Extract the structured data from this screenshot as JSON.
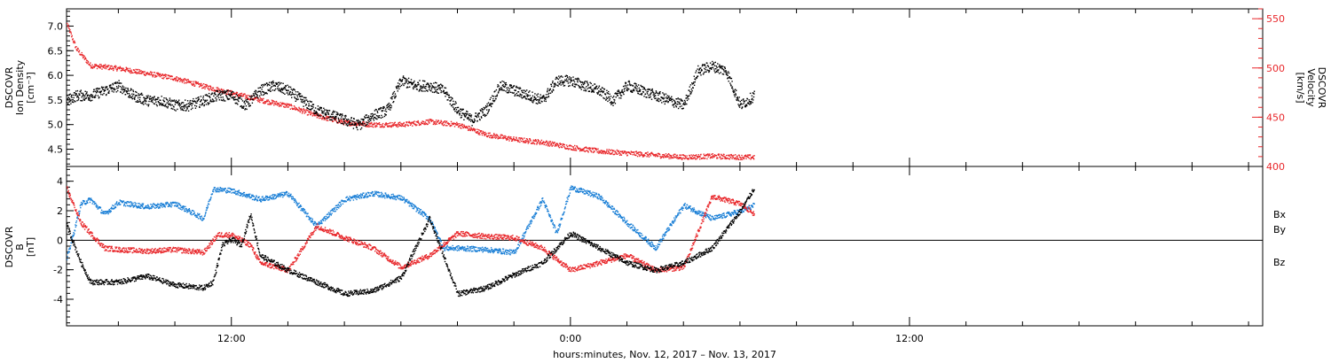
{
  "caption": "hours:minutes, Nov. 12, 2017 – Nov. 13, 2017",
  "time_axis": {
    "start": "2017-11-12 06:10",
    "end": "2017-11-14 00:30",
    "tick_labels": [
      {
        "time": "2017-11-12 12:00",
        "label": "12:00"
      },
      {
        "time": "2017-11-13 00:00",
        "label": "0:00"
      },
      {
        "time": "2017-11-13 12:00",
        "label": "12:00"
      }
    ],
    "minor_tick_hours": 2
  },
  "colors": {
    "density": "#000000",
    "velocity": "#e8262a",
    "bx": "#000000",
    "by": "#1a7fd6",
    "bz": "#e8262a"
  },
  "chart_data": [
    {
      "type": "scatter",
      "ylabel_lines": [
        "DSCOVR",
        "Ion Density",
        "[cm⁻³]"
      ],
      "ylabel_right_lines": [
        "DSCOVR",
        "Velocity",
        "[km/s]"
      ],
      "ylim": [
        4.15,
        7.35
      ],
      "ylim_right": [
        400,
        560
      ],
      "yticks": [
        "7.0",
        "6.5",
        "6.0",
        "5.5",
        "5.0",
        "4.5"
      ],
      "yticks_right": [
        "550",
        "500",
        "450",
        "400"
      ],
      "series": [
        {
          "key": "density",
          "axis": "left",
          "x": [
            "11-12 06:10",
            "11-12 06:30",
            "11-12 07:00",
            "11-12 07:30",
            "11-12 08:00",
            "11-12 08:30",
            "11-12 09:00",
            "11-12 09:30",
            "11-12 10:00",
            "11-12 10:30",
            "11-12 11:00",
            "11-12 11:30",
            "11-12 12:00",
            "11-12 12:30",
            "11-12 13:00",
            "11-12 13:30",
            "11-12 14:00",
            "11-12 14:30",
            "11-12 15:00",
            "11-12 15:30",
            "11-12 16:00",
            "11-12 16:30",
            "11-12 17:00",
            "11-12 17:30",
            "11-12 18:00",
            "11-12 18:30",
            "11-12 19:00",
            "11-12 19:30",
            "11-12 20:00",
            "11-12 20:30",
            "11-12 21:00",
            "11-12 21:30",
            "11-12 22:00",
            "11-12 22:30",
            "11-12 23:00",
            "11-12 23:30",
            "11-13 00:00",
            "11-13 00:30",
            "11-13 01:00",
            "11-13 01:30",
            "11-13 02:00",
            "11-13 02:30",
            "11-13 03:00",
            "11-13 03:30",
            "11-13 04:00",
            "11-13 04:30",
            "11-13 05:00",
            "11-13 05:30",
            "11-13 06:00",
            "11-13 06:30"
          ],
          "values": [
            5.5,
            5.6,
            5.6,
            5.7,
            5.8,
            5.6,
            5.5,
            5.5,
            5.4,
            5.4,
            5.5,
            5.6,
            5.6,
            5.4,
            5.7,
            5.8,
            5.7,
            5.5,
            5.3,
            5.2,
            5.1,
            5.0,
            5.2,
            5.3,
            5.9,
            5.8,
            5.8,
            5.7,
            5.3,
            5.1,
            5.3,
            5.8,
            5.7,
            5.6,
            5.5,
            5.9,
            5.9,
            5.8,
            5.7,
            5.5,
            5.8,
            5.7,
            5.6,
            5.5,
            5.4,
            6.1,
            6.2,
            6.1,
            5.4,
            5.6
          ]
        },
        {
          "key": "velocity",
          "axis": "right",
          "x": [
            "11-12 06:10",
            "11-12 06:30",
            "11-12 07:00",
            "11-12 08:00",
            "11-12 09:00",
            "11-12 10:00",
            "11-12 11:00",
            "11-12 12:00",
            "11-12 13:00",
            "11-12 14:00",
            "11-12 15:00",
            "11-12 16:00",
            "11-12 17:00",
            "11-12 18:00",
            "11-12 19:00",
            "11-12 20:00",
            "11-12 21:00",
            "11-12 22:00",
            "11-12 23:00",
            "11-13 00:00",
            "11-13 01:00",
            "11-13 02:00",
            "11-13 03:00",
            "11-13 04:00",
            "11-13 05:00",
            "11-13 06:00",
            "11-13 06:30"
          ],
          "values": [
            545,
            520,
            503,
            500,
            495,
            490,
            482,
            475,
            468,
            462,
            452,
            445,
            443,
            443,
            446,
            443,
            433,
            428,
            425,
            420,
            416,
            414,
            412,
            410,
            411,
            410,
            410
          ]
        }
      ]
    },
    {
      "type": "scatter",
      "ylabel_lines": [
        "DSCOVR",
        "B",
        "[nT]"
      ],
      "ylim": [
        -5.8,
        5.0
      ],
      "yticks": [
        "4",
        "2",
        "0",
        "-2",
        "-4"
      ],
      "zero_line": true,
      "legend": [
        "Bx",
        "By",
        "Bz"
      ],
      "legend_position": "right",
      "series": [
        {
          "key": "bx",
          "name": "Bx",
          "x": [
            "11-12 06:10",
            "11-12 06:40",
            "11-12 07:00",
            "11-12 08:00",
            "11-12 09:00",
            "11-12 10:00",
            "11-12 11:00",
            "11-12 11:20",
            "11-12 11:40",
            "11-12 12:00",
            "11-12 12:20",
            "11-12 12:40",
            "11-12 13:00",
            "11-12 14:00",
            "11-12 15:00",
            "11-12 16:00",
            "11-12 17:00",
            "11-12 18:00",
            "11-12 18:30",
            "11-12 19:00",
            "11-12 20:00",
            "11-12 21:00",
            "11-12 22:00",
            "11-12 23:00",
            "11-13 00:00",
            "11-13 01:00",
            "11-13 02:00",
            "11-13 03:00",
            "11-13 04:00",
            "11-13 05:00",
            "11-13 06:00",
            "11-13 06:30"
          ],
          "values": [
            1.0,
            -1.5,
            -2.8,
            -2.8,
            -2.4,
            -3.0,
            -3.2,
            -2.8,
            -0.3,
            0.1,
            -0.3,
            1.8,
            -1.0,
            -2.0,
            -2.8,
            -3.6,
            -3.4,
            -2.5,
            -0.5,
            1.5,
            -3.6,
            -3.2,
            -2.3,
            -1.5,
            0.5,
            -0.5,
            -1.5,
            -2.0,
            -1.5,
            -0.5,
            2.0,
            3.6
          ]
        },
        {
          "key": "by",
          "name": "By",
          "x": [
            "11-12 06:10",
            "11-12 06:40",
            "11-12 07:00",
            "11-12 07:30",
            "11-12 08:00",
            "11-12 09:00",
            "11-12 10:00",
            "11-12 10:30",
            "11-12 11:00",
            "11-12 11:20",
            "11-12 12:00",
            "11-12 13:00",
            "11-12 14:00",
            "11-12 15:00",
            "11-12 16:00",
            "11-12 17:00",
            "11-12 18:00",
            "11-12 19:00",
            "11-12 19:30",
            "11-12 20:00",
            "11-12 21:00",
            "11-12 22:00",
            "11-12 23:00",
            "11-12 23:30",
            "11-13 00:00",
            "11-13 01:00",
            "11-13 02:00",
            "11-13 03:00",
            "11-13 04:00",
            "11-13 05:00",
            "11-13 06:00",
            "11-13 06:30"
          ],
          "values": [
            -1.2,
            2.5,
            2.8,
            1.8,
            2.6,
            2.3,
            2.5,
            2.0,
            1.5,
            3.5,
            3.4,
            2.8,
            3.2,
            1.0,
            2.8,
            3.2,
            2.9,
            1.5,
            -0.5,
            -0.5,
            -0.6,
            -0.8,
            2.8,
            0.5,
            3.6,
            3.0,
            1.2,
            -0.5,
            2.4,
            1.5,
            2.0,
            2.4
          ]
        },
        {
          "key": "bz",
          "name": "Bz",
          "x": [
            "11-12 06:10",
            "11-12 06:40",
            "11-12 07:00",
            "11-12 07:30",
            "11-12 08:00",
            "11-12 09:00",
            "11-12 10:00",
            "11-12 11:00",
            "11-12 11:30",
            "11-12 12:00",
            "11-12 12:40",
            "11-12 13:00",
            "11-12 14:00",
            "11-12 15:00",
            "11-12 16:00",
            "11-12 17:00",
            "11-12 18:00",
            "11-12 19:00",
            "11-12 20:00",
            "11-12 21:00",
            "11-12 22:00",
            "11-12 23:00",
            "11-13 00:00",
            "11-13 01:00",
            "11-13 02:00",
            "11-13 03:00",
            "11-13 04:00",
            "11-13 05:00",
            "11-13 06:00",
            "11-13 06:30"
          ],
          "values": [
            3.5,
            1.2,
            0.5,
            -0.5,
            -0.6,
            -0.7,
            -0.6,
            -0.8,
            0.4,
            0.4,
            -0.3,
            -1.5,
            -2.0,
            1.0,
            0.2,
            -0.5,
            -1.8,
            -1.0,
            0.5,
            0.3,
            0.2,
            -0.5,
            -2.0,
            -1.5,
            -1.0,
            -2.0,
            -1.8,
            3.0,
            2.5,
            1.8
          ]
        }
      ]
    }
  ]
}
